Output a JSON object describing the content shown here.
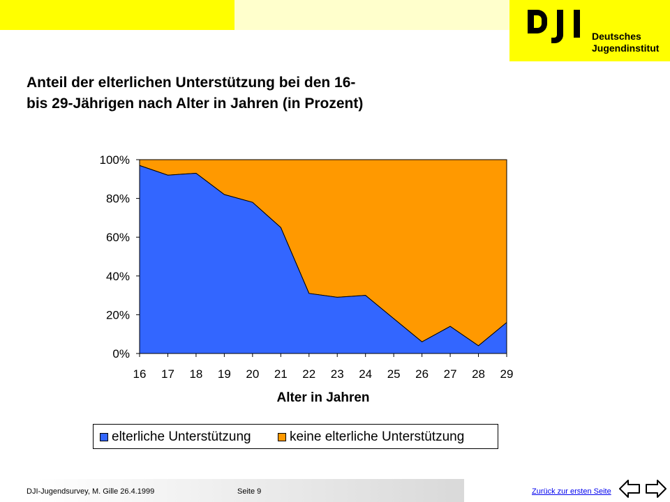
{
  "logo": {
    "mark": "DJI",
    "line1": "Deutsches",
    "line2": "Jugendinstitut"
  },
  "title": {
    "line1": "Anteil der elterlichen Unterstützung bei den 16-",
    "line2": "bis 29-Jährigen nach Alter in Jahren (in Prozent)"
  },
  "chart_data": {
    "type": "area",
    "stacked": "percent",
    "title": "",
    "xlabel": "Alter in Jahren",
    "ylabel": "",
    "x": [
      "16",
      "17",
      "18",
      "19",
      "20",
      "21",
      "22",
      "23",
      "24",
      "25",
      "26",
      "27",
      "28",
      "29"
    ],
    "yticks": [
      "0%",
      "20%",
      "40%",
      "60%",
      "80%",
      "100%"
    ],
    "ylim": [
      0,
      100
    ],
    "series": [
      {
        "name": "elterliche Unterstützung",
        "color": "#3366ff",
        "values": [
          97,
          92,
          93,
          82,
          78,
          65,
          31,
          29,
          30,
          18,
          6,
          14,
          4,
          16
        ]
      },
      {
        "name": "keine elterliche Unterstützung",
        "color": "#ff9900",
        "values": [
          3,
          8,
          7,
          18,
          22,
          35,
          69,
          71,
          70,
          82,
          94,
          86,
          96,
          84
        ]
      }
    ],
    "grid": false,
    "legend": "bottom"
  },
  "footer": {
    "source": "DJI-Jugendsurvey, M. Gille   26.4.1999",
    "page": "Seite 9",
    "link": "Zurück zur ersten Seite"
  }
}
